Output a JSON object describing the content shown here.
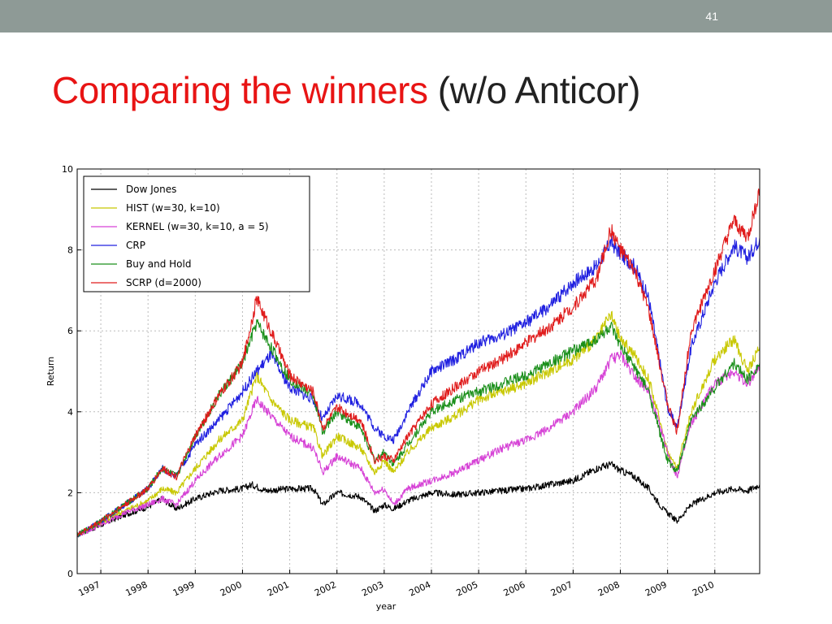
{
  "slide": {
    "number": "41",
    "title_highlight": "Comparing the winners",
    "title_rest": "(w/o Anticor)",
    "topbar_color": "#8e9a96",
    "title_color": "#e81414"
  },
  "chart_data": {
    "type": "line",
    "title": "",
    "xlabel": "year",
    "ylabel": "Return",
    "xlim": [
      1996.5,
      2010.95
    ],
    "ylim": [
      0,
      10
    ],
    "yticks": [
      0,
      2,
      4,
      6,
      8,
      10
    ],
    "xticks": [
      "1997",
      "1998",
      "1999",
      "2000",
      "2001",
      "2002",
      "2003",
      "2004",
      "2005",
      "2006",
      "2007",
      "2008",
      "2009",
      "2010"
    ],
    "grid": true,
    "legend_position": "upper-left",
    "series": [
      {
        "name": "Dow Jones",
        "color": "#000000",
        "x": [
          1996.5,
          1997.0,
          1997.5,
          1998.0,
          1998.3,
          1998.6,
          1999.0,
          1999.5,
          2000.0,
          2000.2,
          2000.5,
          2001.0,
          2001.5,
          2001.7,
          2002.0,
          2002.5,
          2002.8,
          2003.0,
          2003.2,
          2003.5,
          2004.0,
          2004.5,
          2005.0,
          2005.5,
          2006.0,
          2006.5,
          2007.0,
          2007.5,
          2007.8,
          2008.0,
          2008.3,
          2008.6,
          2008.9,
          2009.0,
          2009.2,
          2009.5,
          2010.0,
          2010.4,
          2010.7,
          2010.95
        ],
        "y": [
          0.95,
          1.2,
          1.45,
          1.65,
          1.85,
          1.6,
          1.85,
          2.05,
          2.1,
          2.2,
          2.05,
          2.1,
          2.1,
          1.7,
          2.0,
          1.9,
          1.55,
          1.7,
          1.6,
          1.8,
          2.0,
          1.95,
          2.0,
          2.05,
          2.1,
          2.2,
          2.3,
          2.6,
          2.7,
          2.55,
          2.4,
          2.1,
          1.6,
          1.5,
          1.3,
          1.7,
          2.0,
          2.1,
          2.05,
          2.2
        ]
      },
      {
        "name": "HIST (w=30, k=10)",
        "color": "#c8c800",
        "x": [
          1996.5,
          1997.0,
          1997.5,
          1998.0,
          1998.3,
          1998.6,
          1999.0,
          1999.5,
          2000.0,
          2000.3,
          2000.6,
          2001.0,
          2001.5,
          2001.7,
          2002.0,
          2002.5,
          2002.8,
          2003.0,
          2003.2,
          2003.5,
          2004.0,
          2004.5,
          2005.0,
          2005.5,
          2006.0,
          2006.5,
          2007.0,
          2007.5,
          2007.8,
          2008.0,
          2008.3,
          2008.6,
          2008.9,
          2009.0,
          2009.2,
          2009.5,
          2010.0,
          2010.4,
          2010.7,
          2010.95
        ],
        "y": [
          0.95,
          1.25,
          1.55,
          1.8,
          2.1,
          2.0,
          2.6,
          3.3,
          3.8,
          4.9,
          4.3,
          3.8,
          3.6,
          2.9,
          3.4,
          3.1,
          2.5,
          2.8,
          2.5,
          3.0,
          3.6,
          3.9,
          4.3,
          4.5,
          4.7,
          5.0,
          5.3,
          5.8,
          6.4,
          5.8,
          5.4,
          4.8,
          3.5,
          3.0,
          2.6,
          4.0,
          5.3,
          5.8,
          5.0,
          5.6
        ]
      },
      {
        "name": "KERNEL (w=30, k=10, a = 5)",
        "color": "#d642d6",
        "x": [
          1996.5,
          1997.0,
          1997.5,
          1998.0,
          1998.3,
          1998.6,
          1999.0,
          1999.5,
          2000.0,
          2000.3,
          2000.6,
          2001.0,
          2001.5,
          2001.7,
          2002.0,
          2002.5,
          2002.8,
          2003.0,
          2003.2,
          2003.5,
          2004.0,
          2004.5,
          2005.0,
          2005.5,
          2006.0,
          2006.5,
          2007.0,
          2007.5,
          2007.8,
          2008.0,
          2008.3,
          2008.6,
          2008.9,
          2009.0,
          2009.2,
          2009.5,
          2010.0,
          2010.4,
          2010.7,
          2010.95
        ],
        "y": [
          0.95,
          1.2,
          1.5,
          1.7,
          1.85,
          1.7,
          2.3,
          2.9,
          3.4,
          4.3,
          3.9,
          3.4,
          3.1,
          2.5,
          2.9,
          2.6,
          2.0,
          2.1,
          1.7,
          2.1,
          2.3,
          2.5,
          2.8,
          3.1,
          3.3,
          3.6,
          4.0,
          4.6,
          5.3,
          5.4,
          4.9,
          4.5,
          3.4,
          3.0,
          2.4,
          3.7,
          4.7,
          5.0,
          4.7,
          5.1
        ]
      },
      {
        "name": "CRP",
        "color": "#2020e0",
        "x": [
          1996.5,
          1997.0,
          1997.5,
          1998.0,
          1998.3,
          1998.6,
          1999.0,
          1999.5,
          2000.0,
          2000.3,
          2000.6,
          2001.0,
          2001.5,
          2001.7,
          2002.0,
          2002.5,
          2002.8,
          2003.0,
          2003.2,
          2003.5,
          2004.0,
          2004.5,
          2005.0,
          2005.5,
          2006.0,
          2006.5,
          2007.0,
          2007.5,
          2007.8,
          2008.0,
          2008.3,
          2008.6,
          2008.9,
          2009.0,
          2009.2,
          2009.5,
          2010.0,
          2010.4,
          2010.7,
          2010.95
        ],
        "y": [
          0.95,
          1.3,
          1.7,
          2.1,
          2.6,
          2.4,
          3.2,
          3.8,
          4.5,
          5.0,
          5.4,
          4.6,
          4.3,
          3.8,
          4.4,
          4.2,
          3.6,
          3.4,
          3.3,
          4.0,
          5.0,
          5.3,
          5.7,
          5.9,
          6.2,
          6.6,
          7.2,
          7.6,
          8.2,
          7.9,
          7.6,
          6.8,
          4.8,
          4.1,
          3.6,
          5.6,
          7.2,
          8.1,
          7.8,
          8.3
        ]
      },
      {
        "name": "Buy and Hold",
        "color": "#1a8f1a",
        "x": [
          1996.5,
          1997.0,
          1997.5,
          1998.0,
          1998.3,
          1998.6,
          1999.0,
          1999.5,
          2000.0,
          2000.3,
          2000.6,
          2001.0,
          2001.5,
          2001.7,
          2002.0,
          2002.5,
          2002.8,
          2003.0,
          2003.2,
          2003.5,
          2004.0,
          2004.5,
          2005.0,
          2005.5,
          2006.0,
          2006.5,
          2007.0,
          2007.5,
          2007.8,
          2008.0,
          2008.3,
          2008.6,
          2008.9,
          2009.0,
          2009.2,
          2009.5,
          2010.0,
          2010.4,
          2010.7,
          2010.95
        ],
        "y": [
          0.95,
          1.3,
          1.7,
          2.1,
          2.6,
          2.4,
          3.4,
          4.4,
          5.2,
          6.2,
          5.6,
          4.8,
          4.4,
          3.5,
          4.0,
          3.6,
          2.8,
          3.0,
          2.7,
          3.2,
          4.0,
          4.3,
          4.5,
          4.7,
          4.9,
          5.2,
          5.5,
          5.8,
          6.1,
          5.6,
          5.1,
          4.5,
          3.2,
          2.8,
          2.5,
          3.8,
          4.6,
          5.2,
          4.8,
          5.2
        ]
      },
      {
        "name": "SCRP (d=2000)",
        "color": "#e01c1c",
        "x": [
          1996.5,
          1997.0,
          1997.5,
          1998.0,
          1998.3,
          1998.6,
          1999.0,
          1999.5,
          2000.0,
          2000.3,
          2000.6,
          2001.0,
          2001.5,
          2001.7,
          2002.0,
          2002.5,
          2002.8,
          2003.0,
          2003.2,
          2003.5,
          2004.0,
          2004.5,
          2005.0,
          2005.5,
          2006.0,
          2006.5,
          2007.0,
          2007.5,
          2007.8,
          2008.0,
          2008.3,
          2008.6,
          2008.9,
          2009.0,
          2009.2,
          2009.5,
          2010.0,
          2010.4,
          2010.7,
          2010.95
        ],
        "y": [
          0.95,
          1.3,
          1.7,
          2.1,
          2.6,
          2.4,
          3.4,
          4.4,
          5.2,
          6.8,
          6.0,
          4.9,
          4.5,
          3.6,
          4.1,
          3.8,
          2.8,
          2.9,
          2.8,
          3.4,
          4.2,
          4.6,
          5.0,
          5.3,
          5.7,
          6.1,
          6.6,
          7.3,
          8.5,
          8.0,
          7.5,
          6.5,
          4.8,
          4.2,
          3.5,
          6.0,
          7.5,
          8.7,
          8.3,
          9.5
        ]
      }
    ]
  }
}
